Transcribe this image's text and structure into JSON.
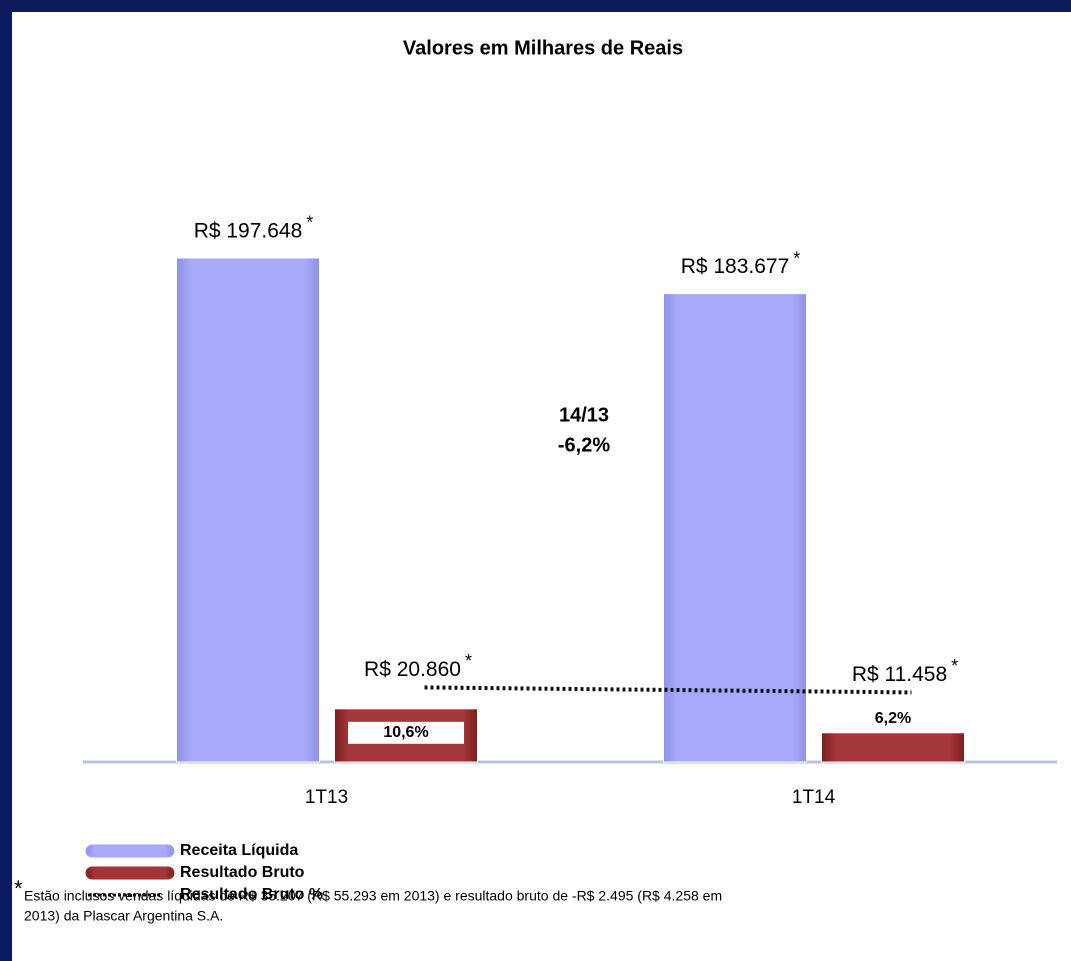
{
  "chart_data": {
    "type": "bar",
    "title": "Valores em Milhares de Reais",
    "categories": [
      "1T13",
      "1T14"
    ],
    "series": [
      {
        "name": "Receita Líquida",
        "color": "#a4a6f6",
        "values": [
          197648,
          183677
        ],
        "value_labels": [
          "R$ 197.648",
          "R$ 183.677"
        ]
      },
      {
        "name": "Resultado Bruto",
        "color": "#9e3234",
        "values": [
          20860,
          11458
        ],
        "value_labels": [
          "R$ 20.860",
          "R$ 11.458"
        ]
      },
      {
        "name": "Resultado Bruto %",
        "color": "#111111",
        "type": "line",
        "axis": "y2",
        "values": [
          10.6,
          6.2
        ],
        "value_labels": [
          "10,6%",
          "6,2%"
        ]
      }
    ],
    "label_marker": "*",
    "ylim": [
      0,
      230000
    ],
    "y2lim": [
      -55,
      461
    ],
    "annotation": [
      "14/13",
      "-6,2%"
    ],
    "footnote_marker": "*",
    "footnote": [
      "Estão inclusos vendas líquidas de R$ 35.207 (R$ 55.293 em 2013) e resultado bruto de -R$ 2.495 (R$ 4.258 em",
      "2013) da Plascar Argentina S.A."
    ]
  }
}
